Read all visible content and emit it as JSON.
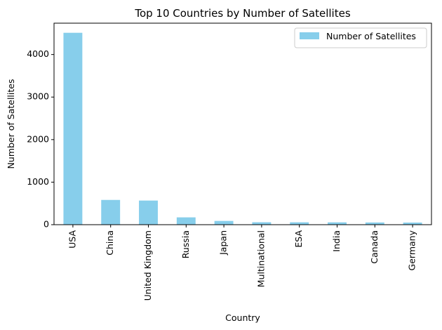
{
  "chart_data": {
    "type": "bar",
    "title": "Top 10 Countries by Number of Satellites",
    "xlabel": "Country",
    "ylabel": "Number of Satellites",
    "categories": [
      "USA",
      "China",
      "United Kingdom",
      "Russia",
      "Japan",
      "Multinational",
      "ESA",
      "India",
      "Canada",
      "Germany"
    ],
    "series": [
      {
        "name": "Number of Satellites",
        "values": [
          4511,
          582,
          567,
          172,
          88,
          57,
          56,
          55,
          52,
          50
        ],
        "color": "#87ceeb"
      }
    ],
    "ylim": [
      0,
      4737
    ],
    "yticks": [
      0,
      1000,
      2000,
      3000,
      4000
    ],
    "grid": false,
    "legend_position": "top-right"
  }
}
